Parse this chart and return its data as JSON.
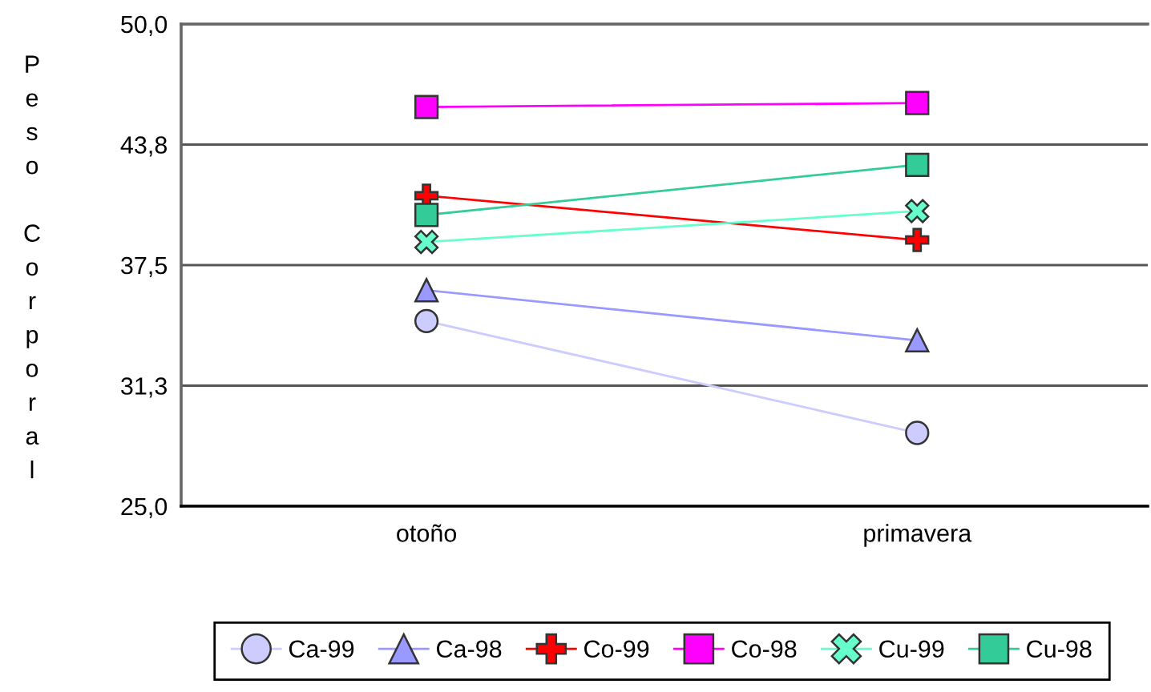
{
  "chart_data": {
    "type": "line",
    "ylabel": "Peso Corporal",
    "categories": [
      "otoño",
      "primavera"
    ],
    "series": [
      {
        "name": "Ca-99",
        "color": "#ccccff",
        "marker": "circle",
        "values": [
          34.6,
          28.8
        ]
      },
      {
        "name": "Ca-98",
        "color": "#9999ff",
        "marker": "triangle",
        "values": [
          36.2,
          33.6
        ]
      },
      {
        "name": "Co-99",
        "color": "#ff0000",
        "marker": "cross",
        "values": [
          41.1,
          38.8
        ]
      },
      {
        "name": "Co-98",
        "color": "#ff00ff",
        "marker": "square",
        "values": [
          45.7,
          45.9
        ]
      },
      {
        "name": "Cu-99",
        "color": "#66ffcc",
        "marker": "x",
        "values": [
          38.7,
          40.3
        ]
      },
      {
        "name": "Cu-98",
        "color": "#33cc99",
        "marker": "square",
        "values": [
          40.1,
          42.7
        ]
      }
    ],
    "ylim": [
      25,
      50
    ],
    "yticks": [
      {
        "value": 25,
        "label": "25,0"
      },
      {
        "value": 31.25,
        "label": "31,3"
      },
      {
        "value": 37.5,
        "label": "37,5"
      },
      {
        "value": 43.75,
        "label": "43,8"
      },
      {
        "value": 50,
        "label": "50,0"
      }
    ],
    "grid": "y",
    "legend": "bottom"
  }
}
